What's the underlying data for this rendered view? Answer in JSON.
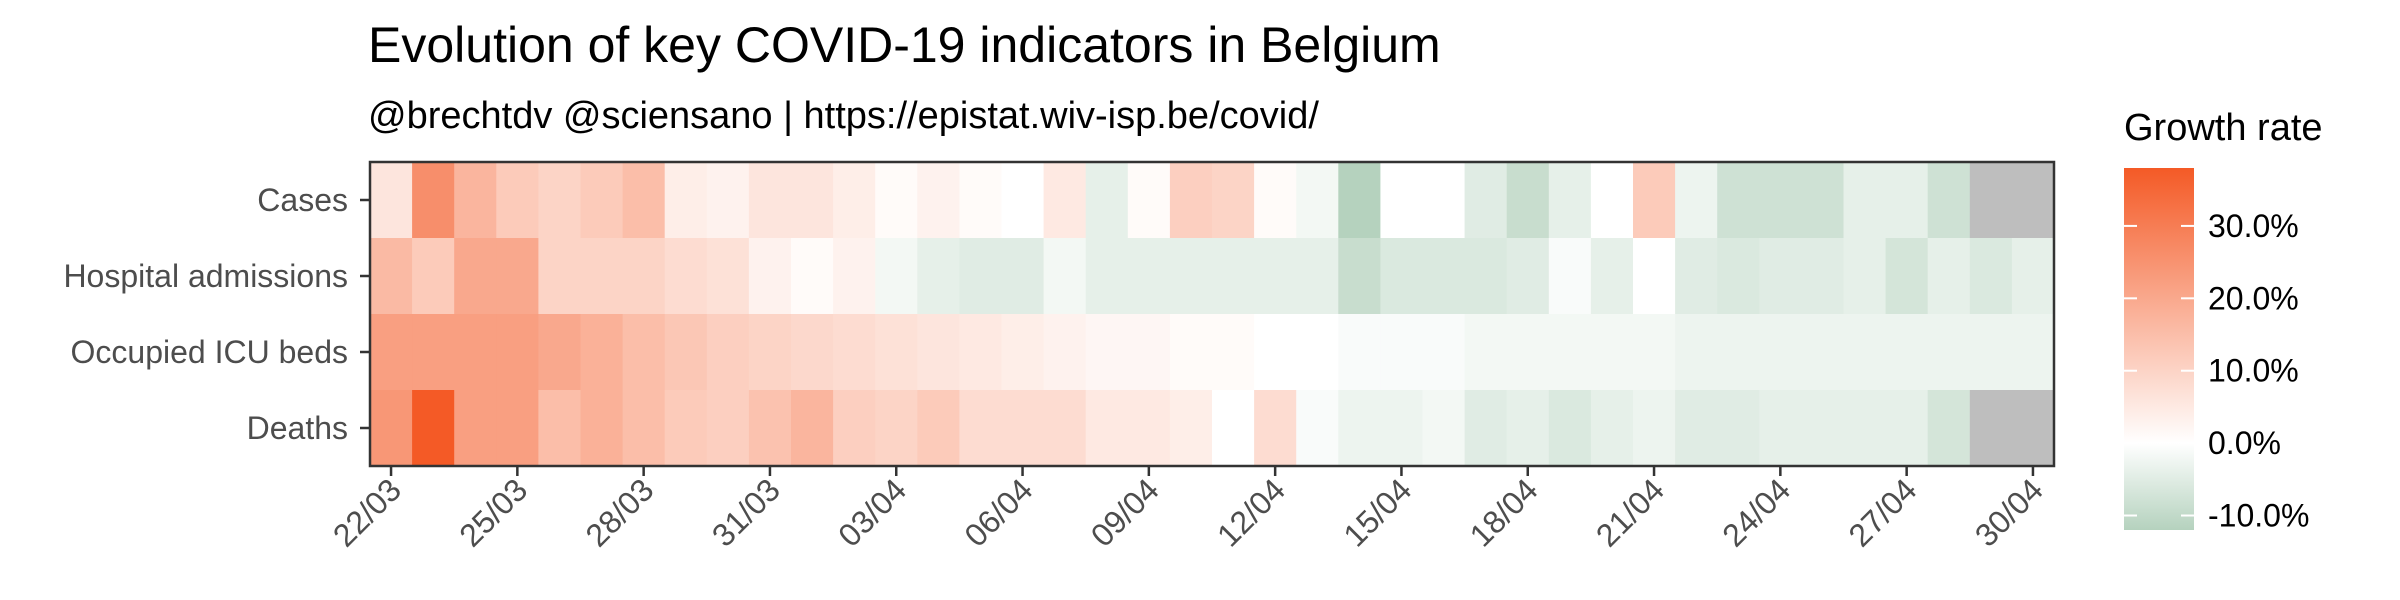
{
  "chart_data": {
    "type": "heatmap",
    "title": "Evolution of key COVID-19 indicators in Belgium",
    "subtitle": "@brechtdv @sciensano | https://epistat.wiv-isp.be/covid/",
    "rows": [
      "Cases",
      "Hospital admissions",
      "Occupied ICU beds",
      "Deaths"
    ],
    "x_start_date": "2020-03-22",
    "x_tick_labels": [
      "22/03",
      "25/03",
      "28/03",
      "31/03",
      "03/04",
      "06/04",
      "09/04",
      "12/04",
      "15/04",
      "18/04",
      "21/04",
      "24/04",
      "27/04",
      "30/04"
    ],
    "dates": [
      "22/03",
      "23/03",
      "24/03",
      "25/03",
      "26/03",
      "27/03",
      "28/03",
      "29/03",
      "30/03",
      "31/03",
      "01/04",
      "02/04",
      "03/04",
      "04/04",
      "05/04",
      "06/04",
      "07/04",
      "08/04",
      "09/04",
      "10/04",
      "11/04",
      "12/04",
      "13/04",
      "14/04",
      "15/04",
      "16/04",
      "17/04",
      "18/04",
      "19/04",
      "20/04",
      "21/04",
      "22/04",
      "23/04",
      "24/04",
      "25/04",
      "26/04",
      "27/04",
      "28/04",
      "29/04",
      "30/04"
    ],
    "values": [
      [
        6,
        26,
        17,
        12,
        10,
        12,
        15,
        4,
        3,
        6,
        6,
        4,
        1,
        3,
        1,
        0,
        5,
        -4,
        1,
        11,
        10,
        1,
        -2,
        -14,
        0,
        0,
        -5,
        -9,
        -4,
        0,
        12,
        -3,
        -8,
        -8,
        -8,
        -4,
        -4,
        -8,
        null,
        null
      ],
      [
        16,
        12,
        20,
        20,
        10,
        10,
        10,
        8,
        7,
        3,
        1,
        3,
        -2,
        -4,
        -5,
        -5,
        -2,
        -4,
        -4,
        -4,
        -4,
        -4,
        -4,
        -9,
        -6,
        -6,
        -6,
        -5,
        -1,
        -4,
        0,
        -5,
        -6,
        -5,
        -5,
        -4,
        -7,
        -4,
        -6,
        -4
      ],
      [
        22,
        22,
        22,
        22,
        20,
        18,
        15,
        13,
        11,
        10,
        9,
        8,
        7,
        6,
        5,
        4,
        3,
        2,
        2,
        1,
        1,
        0,
        0,
        -1,
        -1,
        -1,
        -2,
        -2,
        -2,
        -2,
        -2,
        -3,
        -3,
        -3,
        -3,
        -3,
        -3,
        -3,
        -3,
        -3
      ],
      [
        24,
        38,
        22,
        22,
        15,
        18,
        15,
        12,
        11,
        14,
        17,
        11,
        10,
        12,
        8,
        8,
        8,
        5,
        5,
        4,
        0,
        8,
        -1,
        -3,
        -3,
        -2,
        -5,
        -4,
        -6,
        -4,
        -3,
        -5,
        -5,
        -4,
        -4,
        -4,
        -4,
        -7,
        null,
        null
      ]
    ],
    "missing_color": "#bebebe",
    "colors": {
      "high": "#f45a26",
      "mid": "#ffffff",
      "low": "#b5d2be"
    },
    "color_scale_limits": [
      -12,
      38
    ],
    "legend": {
      "title": "Growth rate",
      "ticks": [
        30,
        20,
        10,
        0,
        -10
      ],
      "labels": [
        "30.0%",
        "20.0%",
        "10.0%",
        "0.0%",
        "-10.0%"
      ],
      "position": "right"
    }
  }
}
